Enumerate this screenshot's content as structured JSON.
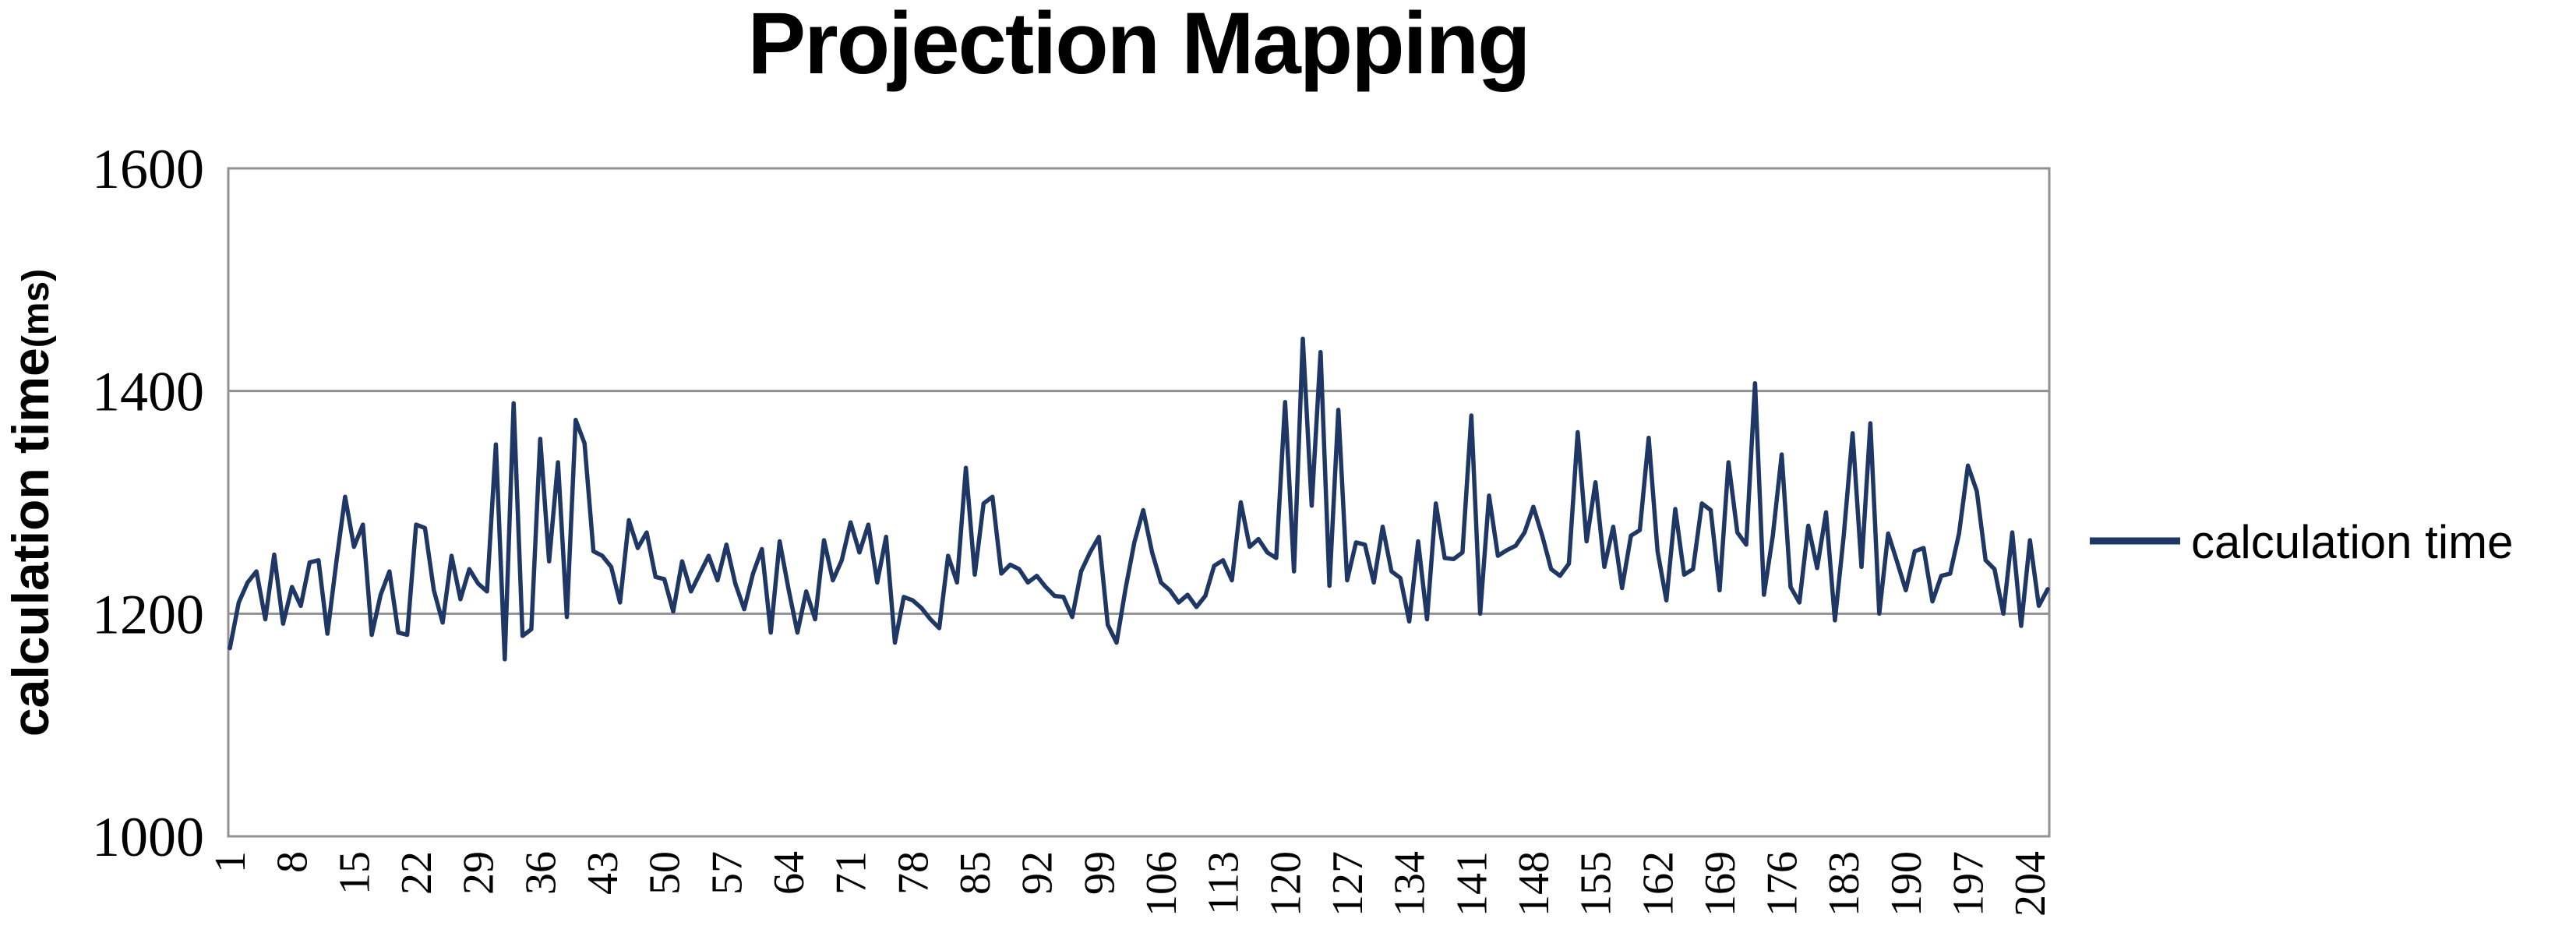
{
  "chart_data": {
    "type": "line",
    "title": "Projection Mapping",
    "xlabel": "",
    "ylabel": "calculation time",
    "ylabel_unit": "(ms)",
    "grid": true,
    "legend_position": "right",
    "legend": {
      "label": "calculation time"
    },
    "y_axis": {
      "min": 1000,
      "max": 1600,
      "tick_step": 200,
      "ticks": [
        1600,
        1400,
        1200,
        1000
      ]
    },
    "x_axis": {
      "first_point": 1,
      "tick_interval": 7,
      "tick_labels": [
        "1",
        "8",
        "15",
        "22",
        "29",
        "36",
        "43",
        "50",
        "57",
        "64",
        "71",
        "78",
        "85",
        "92",
        "99",
        "106",
        "113",
        "120",
        "127",
        "134",
        "141",
        "148",
        "155",
        "162",
        "169",
        "176",
        "183",
        "190",
        "197",
        "204"
      ]
    },
    "series": [
      {
        "name": "calculation time",
        "color": "#1e3765",
        "values": [
          1169,
          1210,
          1228,
          1238,
          1195,
          1253,
          1191,
          1224,
          1207,
          1246,
          1248,
          1182,
          1246,
          1305,
          1260,
          1280,
          1181,
          1217,
          1238,
          1183,
          1181,
          1280,
          1277,
          1221,
          1192,
          1252,
          1213,
          1240,
          1227,
          1220,
          1352,
          1159,
          1389,
          1180,
          1186,
          1357,
          1247,
          1336,
          1197,
          1374,
          1353,
          1256,
          1252,
          1242,
          1210,
          1284,
          1259,
          1273,
          1233,
          1231,
          1202,
          1247,
          1220,
          1236,
          1252,
          1230,
          1262,
          1227,
          1204,
          1236,
          1258,
          1183,
          1265,
          1222,
          1183,
          1220,
          1195,
          1266,
          1230,
          1248,
          1282,
          1255,
          1280,
          1228,
          1269,
          1174,
          1215,
          1212,
          1205,
          1195,
          1187,
          1252,
          1228,
          1331,
          1235,
          1299,
          1305,
          1236,
          1244,
          1240,
          1228,
          1234,
          1224,
          1216,
          1215,
          1197,
          1238,
          1255,
          1269,
          1190,
          1174,
          1222,
          1264,
          1293,
          1255,
          1228,
          1221,
          1210,
          1217,
          1206,
          1216,
          1243,
          1248,
          1230,
          1300,
          1260,
          1267,
          1255,
          1250,
          1390,
          1238,
          1447,
          1297,
          1435,
          1225,
          1383,
          1230,
          1264,
          1262,
          1228,
          1278,
          1238,
          1232,
          1193,
          1265,
          1195,
          1299,
          1250,
          1249,
          1255,
          1378,
          1200,
          1306,
          1252,
          1257,
          1261,
          1273,
          1296,
          1270,
          1240,
          1234,
          1245,
          1363,
          1265,
          1318,
          1242,
          1278,
          1223,
          1270,
          1275,
          1358,
          1256,
          1212,
          1294,
          1235,
          1240,
          1299,
          1293,
          1221,
          1336,
          1273,
          1262,
          1407,
          1217,
          1270,
          1343,
          1224,
          1210,
          1279,
          1241,
          1291,
          1194,
          1270,
          1362,
          1242,
          1371,
          1200,
          1272,
          1247,
          1221,
          1256,
          1259,
          1211,
          1234,
          1236,
          1272,
          1333,
          1310,
          1248,
          1240,
          1200,
          1273,
          1189,
          1266,
          1207,
          1222
        ]
      }
    ]
  },
  "styles": {
    "line_color": "#1e3765",
    "grid_color": "#919191",
    "text_color": "#000000",
    "background": "#ffffff"
  }
}
